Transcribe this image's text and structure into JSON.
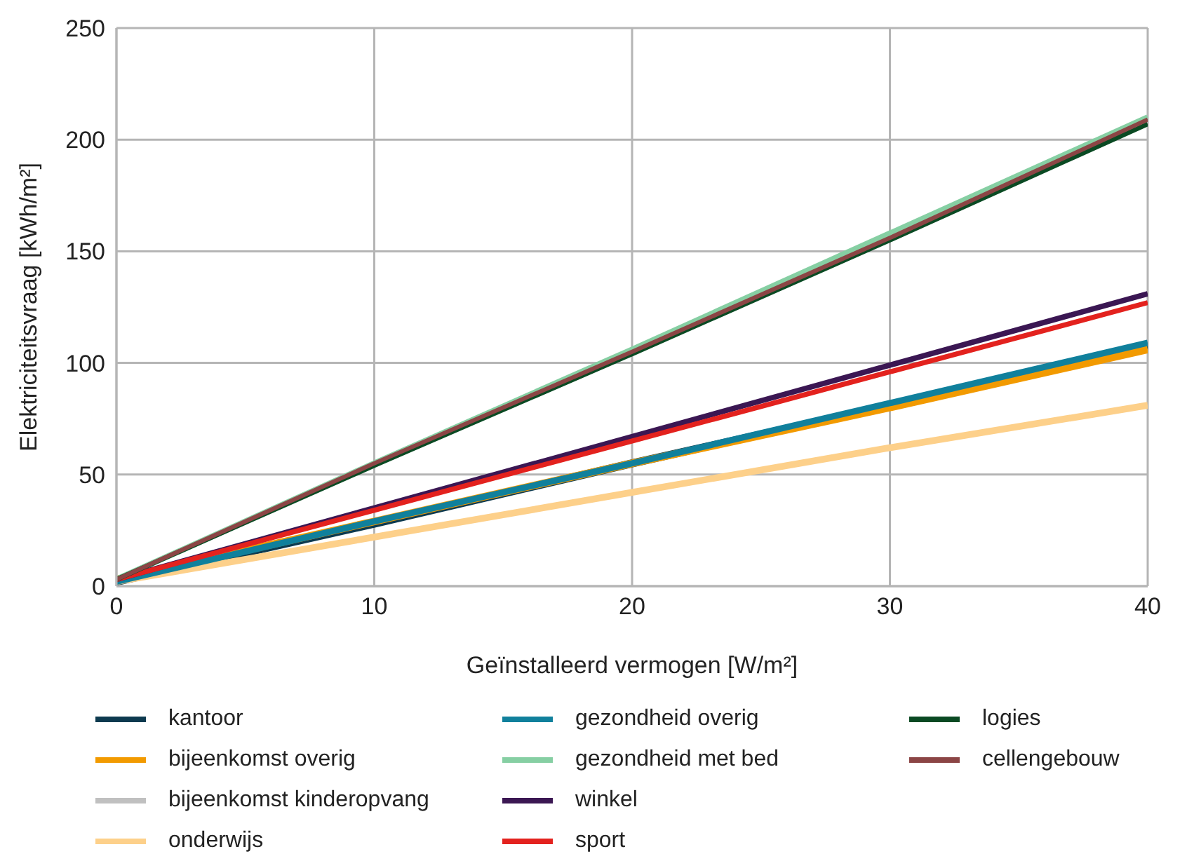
{
  "chart_data": {
    "type": "line",
    "xlabel": "Geïnstalleerd vermogen [W/m²]",
    "ylabel": "Elektriciteitsvraag [kWh/m²]",
    "x": [
      0,
      10,
      20,
      30,
      40
    ],
    "xlim": [
      0,
      40
    ],
    "xticks": [
      0,
      10,
      20,
      30,
      40
    ],
    "ylim": [
      0,
      250
    ],
    "yticks": [
      0,
      50,
      100,
      150,
      200,
      250
    ],
    "grid": true,
    "legend": "bottom",
    "marker": "none",
    "line_style": "solid",
    "series": [
      {
        "name": "kantoor",
        "color": "#0d3a4f",
        "values": [
          2,
          28,
          55,
          81,
          107
        ]
      },
      {
        "name": "bijeenkomst overig",
        "color": "#f29a00",
        "values": [
          3,
          29,
          55,
          80,
          106
        ]
      },
      {
        "name": "bijeenkomst kinderopvang",
        "color": "#c0c0c0",
        "values": [
          null,
          null,
          null,
          null,
          null
        ]
      },
      {
        "name": "onderwijs",
        "color": "#fdd08a",
        "values": [
          2,
          22,
          42,
          62,
          81
        ]
      },
      {
        "name": "gezondheid overig",
        "color": "#10809c",
        "values": [
          2,
          29,
          55,
          82,
          109
        ]
      },
      {
        "name": "gezondheid met bed",
        "color": "#86cfa3",
        "values": [
          3,
          55,
          106,
          158,
          210
        ]
      },
      {
        "name": "winkel",
        "color": "#3b1753",
        "values": [
          3,
          35,
          67,
          99,
          131
        ]
      },
      {
        "name": "sport",
        "color": "#e3221e",
        "values": [
          3,
          34,
          65,
          96,
          127
        ]
      },
      {
        "name": "logies",
        "color": "#0a4a23",
        "values": [
          3,
          54,
          104,
          155,
          207
        ]
      },
      {
        "name": "cellengebouw",
        "color": "#8b4545",
        "values": [
          3,
          55,
          105,
          156,
          209
        ]
      }
    ]
  }
}
